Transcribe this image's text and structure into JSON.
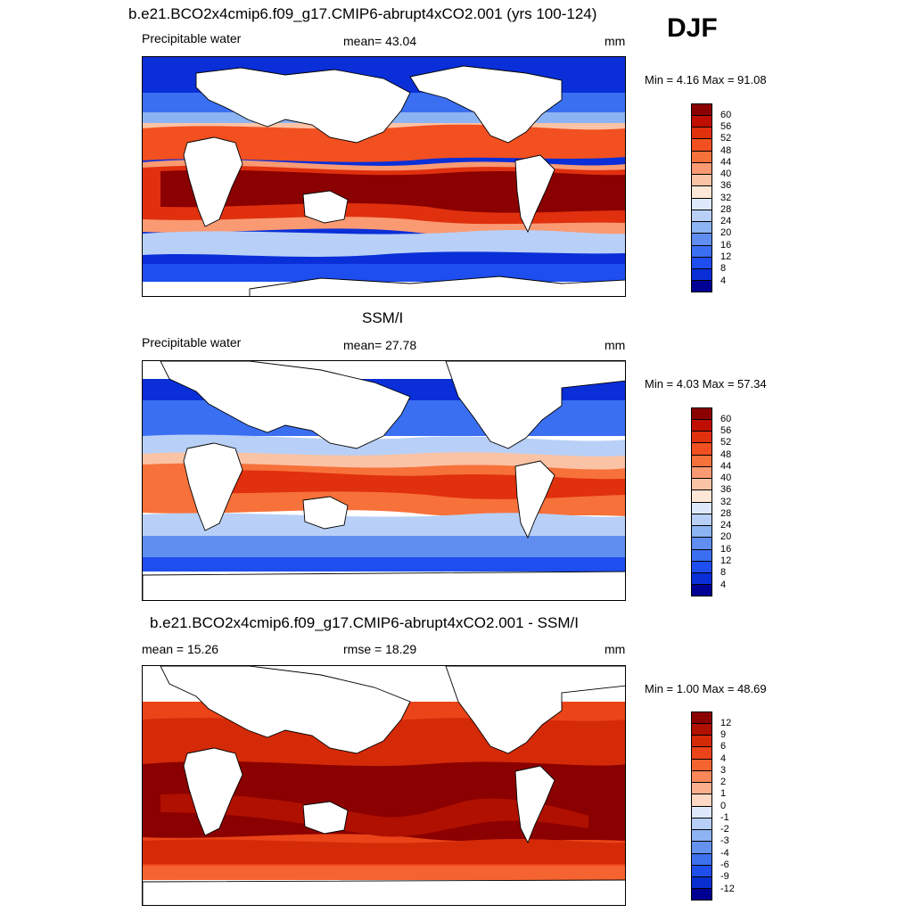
{
  "season": "DJF",
  "panels": [
    {
      "title": "b.e21.BCO2x4cmip6.f09_g17.CMIP6-abrupt4xCO2.001 (yrs 100-124)",
      "left_label": "Precipitable water",
      "center_label": "mean=  43.04",
      "units": "mm",
      "minmax": "Min =   4.16 Max =  91.08",
      "mean": 43.04,
      "min": 4.16,
      "max": 91.08
    },
    {
      "title": "SSM/I",
      "left_label": "Precipitable water",
      "center_label": "mean=  27.78",
      "units": "mm",
      "minmax": "Min =   4.03 Max =  57.34",
      "mean": 27.78,
      "min": 4.03,
      "max": 57.34
    },
    {
      "title": "b.e21.BCO2x4cmip6.f09_g17.CMIP6-abrupt4xCO2.001 - SSM/I",
      "left_label": "mean =  15.26",
      "center_label": "rmse =  18.29",
      "units": "mm",
      "minmax": "Min =   1.00 Max =  48.69",
      "mean": 15.26,
      "rmse": 18.29,
      "min": 1.0,
      "max": 48.69
    }
  ],
  "colorbars": {
    "field_levels": [
      "60",
      "56",
      "52",
      "48",
      "44",
      "40",
      "36",
      "32",
      "28",
      "24",
      "20",
      "16",
      "12",
      "8",
      "4"
    ],
    "field_colors": [
      "#8b0000",
      "#c00f00",
      "#e0300e",
      "#f25020",
      "#f7713a",
      "#fa9a73",
      "#fbc3a5",
      "#fde8d8",
      "#dde9fb",
      "#b8d0f7",
      "#8cb3f2",
      "#5f8ef0",
      "#3b6ff2",
      "#1e4ef0",
      "#0a2fd8",
      "#000095"
    ],
    "diff_levels": [
      "12",
      "9",
      "6",
      "4",
      "3",
      "2",
      "1",
      "0",
      "-1",
      "-2",
      "-3",
      "-4",
      "-6",
      "-9",
      "-12"
    ],
    "diff_colors": [
      "#8b0000",
      "#b01000",
      "#d42a08",
      "#ea4418",
      "#f56430",
      "#f9875a",
      "#fbaf8d",
      "#fdd8c4",
      "#dde8fb",
      "#b7cff7",
      "#8db3f3",
      "#6592ef",
      "#3d70ed",
      "#1e4eeb",
      "#0a2fd0",
      "#000090"
    ]
  }
}
